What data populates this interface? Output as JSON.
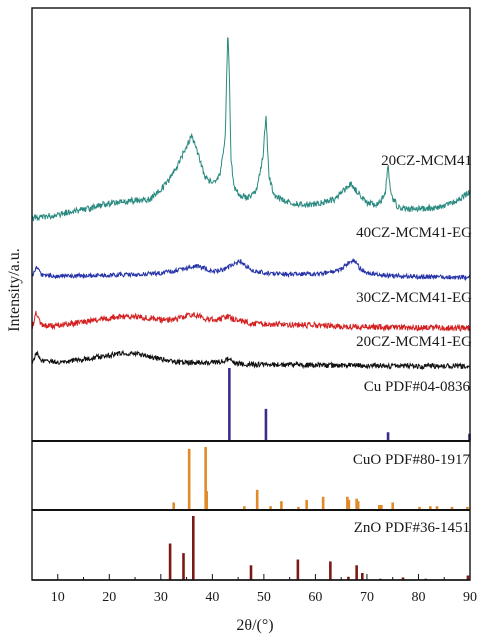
{
  "chart_data": {
    "type": "line",
    "xlabel": "2θ/(°)",
    "ylabel": "Intensity/a.u.",
    "xlim": [
      5,
      90
    ],
    "x_ticks": [
      10,
      20,
      30,
      40,
      50,
      60,
      70,
      80,
      90
    ],
    "grid": false,
    "series": [
      {
        "name": "20CZ-MCM41",
        "color": "#2a8a80",
        "x": [
          5,
          8,
          12,
          16,
          20,
          24,
          28,
          31,
          33,
          35,
          36,
          37,
          38.5,
          40,
          41.5,
          42.5,
          43.0,
          43.3,
          43.6,
          44.2,
          45.5,
          47,
          48.5,
          49.8,
          50.4,
          51,
          52,
          55,
          58,
          61,
          64,
          66,
          67,
          68,
          70,
          72,
          73.5,
          74.1,
          74.7,
          76,
          78,
          81,
          84,
          87,
          89.5
        ],
        "values": [
          0.02,
          0.03,
          0.05,
          0.07,
          0.1,
          0.11,
          0.12,
          0.2,
          0.28,
          0.4,
          0.46,
          0.38,
          0.24,
          0.2,
          0.25,
          0.45,
          1.0,
          0.8,
          0.34,
          0.18,
          0.14,
          0.13,
          0.16,
          0.34,
          0.56,
          0.24,
          0.14,
          0.1,
          0.09,
          0.1,
          0.12,
          0.18,
          0.2,
          0.16,
          0.1,
          0.09,
          0.14,
          0.3,
          0.14,
          0.08,
          0.07,
          0.07,
          0.08,
          0.1,
          0.15
        ]
      },
      {
        "name": "40CZ-MCM41-EG",
        "color": "#2633a8",
        "x": [
          5,
          5.8,
          7,
          10,
          15,
          20,
          25,
          30,
          33,
          35,
          37,
          38.5,
          40,
          42,
          44,
          45.5,
          46.5,
          48,
          52,
          56,
          60,
          63,
          65,
          66.5,
          67.5,
          68.5,
          70,
          74,
          78,
          82,
          86,
          90
        ],
        "values": [
          0.2,
          0.95,
          0.4,
          0.3,
          0.34,
          0.38,
          0.42,
          0.55,
          0.75,
          0.95,
          1.1,
          0.95,
          0.7,
          0.8,
          1.2,
          1.5,
          1.1,
          0.7,
          0.5,
          0.45,
          0.5,
          0.6,
          0.85,
          1.4,
          1.55,
          1.0,
          0.55,
          0.35,
          0.3,
          0.25,
          0.22,
          0.2
        ]
      },
      {
        "name": "30CZ-MCM41-EG",
        "color": "#d42020",
        "x": [
          5,
          5.8,
          7,
          10,
          14,
          18,
          22,
          24,
          27,
          30,
          33,
          35,
          37,
          39,
          41,
          43,
          45,
          48,
          52,
          56,
          60,
          64,
          68,
          72,
          76,
          80,
          84,
          88,
          90
        ],
        "values": [
          0.2,
          1.45,
          0.4,
          0.45,
          0.65,
          0.95,
          1.15,
          1.18,
          1.1,
          0.9,
          0.95,
          1.25,
          1.3,
          0.95,
          0.9,
          1.15,
          0.85,
          0.6,
          0.55,
          0.5,
          0.45,
          0.4,
          0.35,
          0.3,
          0.28,
          0.26,
          0.25,
          0.25,
          0.25
        ]
      },
      {
        "name": "20CZ-MCM41-EG",
        "color": "#111111",
        "x": [
          5,
          5.8,
          7,
          10,
          14,
          18,
          22,
          23.5,
          25,
          28,
          31,
          34,
          37,
          40,
          42,
          43,
          44,
          46,
          50,
          55,
          60,
          65,
          70,
          75,
          80,
          85,
          90
        ],
        "values": [
          0.3,
          1.3,
          0.6,
          0.5,
          0.65,
          0.95,
          1.2,
          1.25,
          1.2,
          0.95,
          0.6,
          0.45,
          0.45,
          0.42,
          0.55,
          0.75,
          0.45,
          0.32,
          0.28,
          0.26,
          0.24,
          0.22,
          0.2,
          0.18,
          0.17,
          0.16,
          0.15
        ]
      }
    ],
    "reference_patterns": [
      {
        "name": "Cu PDF#04-0836",
        "color": "#3a2e8a",
        "peaks": [
          [
            43.3,
            1.0
          ],
          [
            50.4,
            0.44
          ],
          [
            74.1,
            0.12
          ],
          [
            89.9,
            0.1
          ]
        ]
      },
      {
        "name": "CuO PDF#80-1917",
        "color": "#e08a2a",
        "peaks": [
          [
            32.5,
            0.12
          ],
          [
            35.5,
            0.97
          ],
          [
            38.7,
            1.0
          ],
          [
            38.9,
            0.3
          ],
          [
            46.2,
            0.06
          ],
          [
            48.7,
            0.32
          ],
          [
            51.3,
            0.06
          ],
          [
            53.4,
            0.14
          ],
          [
            56.7,
            0.05
          ],
          [
            58.3,
            0.16
          ],
          [
            61.5,
            0.21
          ],
          [
            66.2,
            0.21
          ],
          [
            66.5,
            0.16
          ],
          [
            68.0,
            0.18
          ],
          [
            68.3,
            0.14
          ],
          [
            72.4,
            0.08
          ],
          [
            72.8,
            0.08
          ],
          [
            75.0,
            0.12
          ],
          [
            80.2,
            0.05
          ],
          [
            82.3,
            0.06
          ],
          [
            83.6,
            0.06
          ],
          [
            86.5,
            0.05
          ],
          [
            89.5,
            0.05
          ]
        ]
      },
      {
        "name": "ZnO PDF#36-1451",
        "color": "#7a1a14",
        "peaks": [
          [
            31.8,
            0.57
          ],
          [
            34.4,
            0.42
          ],
          [
            36.3,
            1.0
          ],
          [
            47.5,
            0.23
          ],
          [
            56.6,
            0.32
          ],
          [
            62.9,
            0.29
          ],
          [
            66.4,
            0.05
          ],
          [
            68.0,
            0.23
          ],
          [
            69.1,
            0.11
          ],
          [
            72.6,
            0.02
          ],
          [
            77.0,
            0.04
          ],
          [
            81.4,
            0.02
          ],
          [
            89.6,
            0.07
          ]
        ]
      }
    ]
  }
}
